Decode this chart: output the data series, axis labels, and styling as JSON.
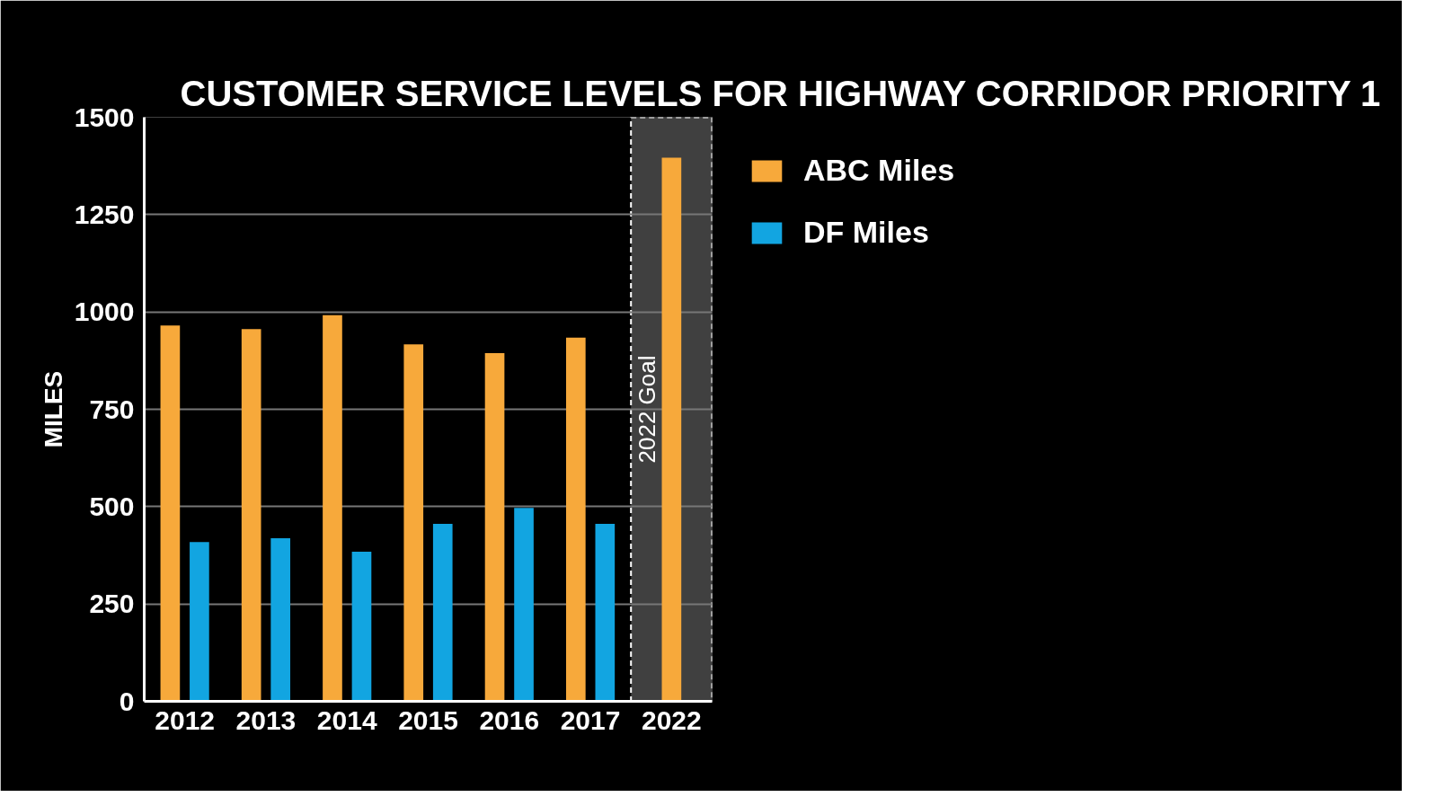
{
  "chart_data": {
    "type": "bar",
    "title": "CUSTOMER SERVICE LEVELS FOR HIGHWAY CORRIDOR PRIORITY 1",
    "ylabel": "MILES",
    "categories": [
      "2012",
      "2013",
      "2014",
      "2015",
      "2016",
      "2017",
      "2022"
    ],
    "series": [
      {
        "name": "ABC Miles",
        "color": "#f7a93b",
        "values": [
          965,
          956,
          992,
          917,
          894,
          934,
          1396
        ]
      },
      {
        "name": "DF Miles",
        "color": "#12a5e1",
        "values": [
          409,
          419,
          384,
          456,
          497,
          456,
          null
        ]
      }
    ],
    "ylim": [
      0,
      1500
    ],
    "yticks": [
      0,
      250,
      500,
      750,
      1000,
      1250,
      1500
    ],
    "bands": [
      {
        "axis": "x",
        "from": "2022",
        "to": "2022",
        "label": "2022 Goal",
        "color": "#404040"
      }
    ],
    "grid": "y",
    "legend": "top right"
  }
}
